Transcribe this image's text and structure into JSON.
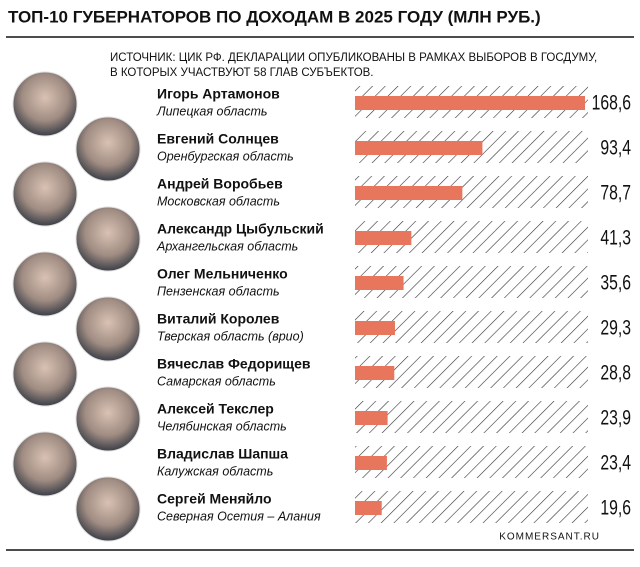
{
  "chart_data": {
    "type": "bar",
    "orientation": "horizontal",
    "title": "ТОП-10 ГУБЕРНАТОРОВ ПО ДОХОДАМ В 2025 ГОДУ (МЛН РУБ.)",
    "subtitle": [
      "ИСТОЧНИК: ЦИК РФ. ДЕКЛАРАЦИИ ОПУБЛИКОВАНЫ В РАМКАХ ВЫБОРОВ В ГОСДУМУ,",
      "В КОТОРЫХ УЧАСТВУЮТ 58 ГЛАВ СУБЪЕКТОВ."
    ],
    "categories": [
      "Игорь Артамонов",
      "Евгений Солнцев",
      "Андрей Воробьев",
      "Александр Цыбульский",
      "Олег Мельниченко",
      "Виталий Королев",
      "Вячеслав Федорищев",
      "Алексей Текслер",
      "Владислав Шапша",
      "Сергей Меняйло"
    ],
    "regions": [
      "Липецкая область",
      "Оренбургская область",
      "Московская область",
      "Архангельская область",
      "Пензенская область",
      "Тверская область (врио)",
      "Самарская область",
      "Челябинская область",
      "Калужская область",
      "Северная Осетия – Алания"
    ],
    "values": [
      168.6,
      93.4,
      78.7,
      41.3,
      35.6,
      29.3,
      28.8,
      23.9,
      23.4,
      19.6
    ],
    "value_labels": [
      "168,6",
      "93,4",
      "78,7",
      "41,3",
      "35,6",
      "29,3",
      "28,8",
      "23,9",
      "23,4",
      "19,6"
    ],
    "color": "#e8765c",
    "source": "KOMMERSANT.RU"
  }
}
